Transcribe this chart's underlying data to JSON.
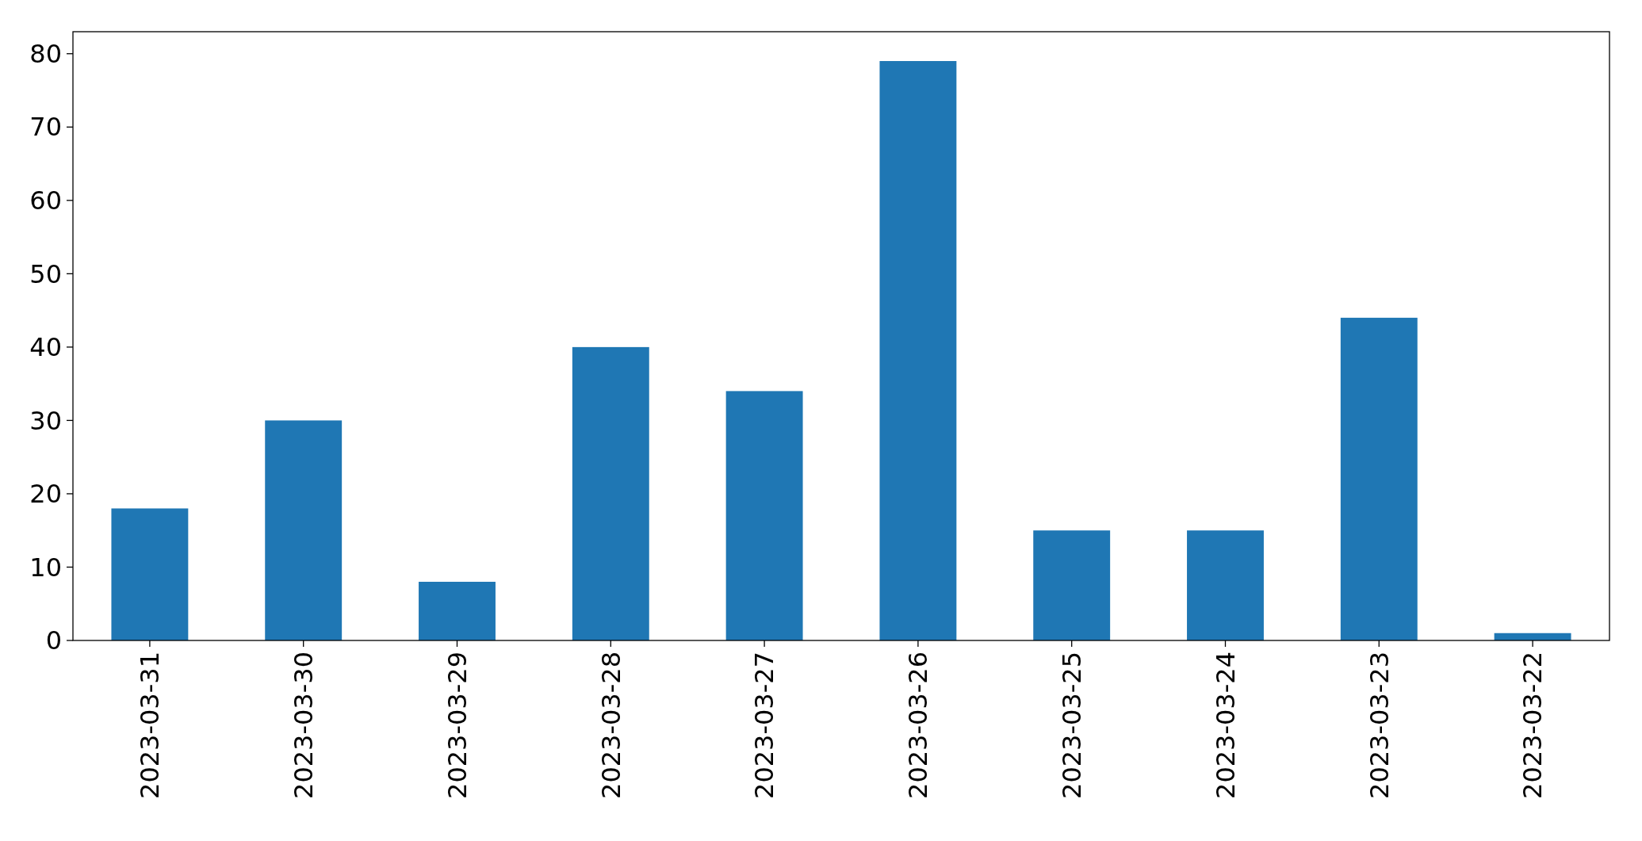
{
  "chart_data": {
    "type": "bar",
    "categories": [
      "2023-03-31",
      "2023-03-30",
      "2023-03-29",
      "2023-03-28",
      "2023-03-27",
      "2023-03-26",
      "2023-03-25",
      "2023-03-24",
      "2023-03-23",
      "2023-03-22"
    ],
    "values": [
      18,
      30,
      8,
      40,
      34,
      79,
      15,
      15,
      44,
      1
    ],
    "color": "#1f77b4",
    "ylim": [
      0,
      83
    ],
    "yticks": [
      0,
      10,
      20,
      30,
      40,
      50,
      60,
      70,
      80
    ],
    "grid": false
  }
}
